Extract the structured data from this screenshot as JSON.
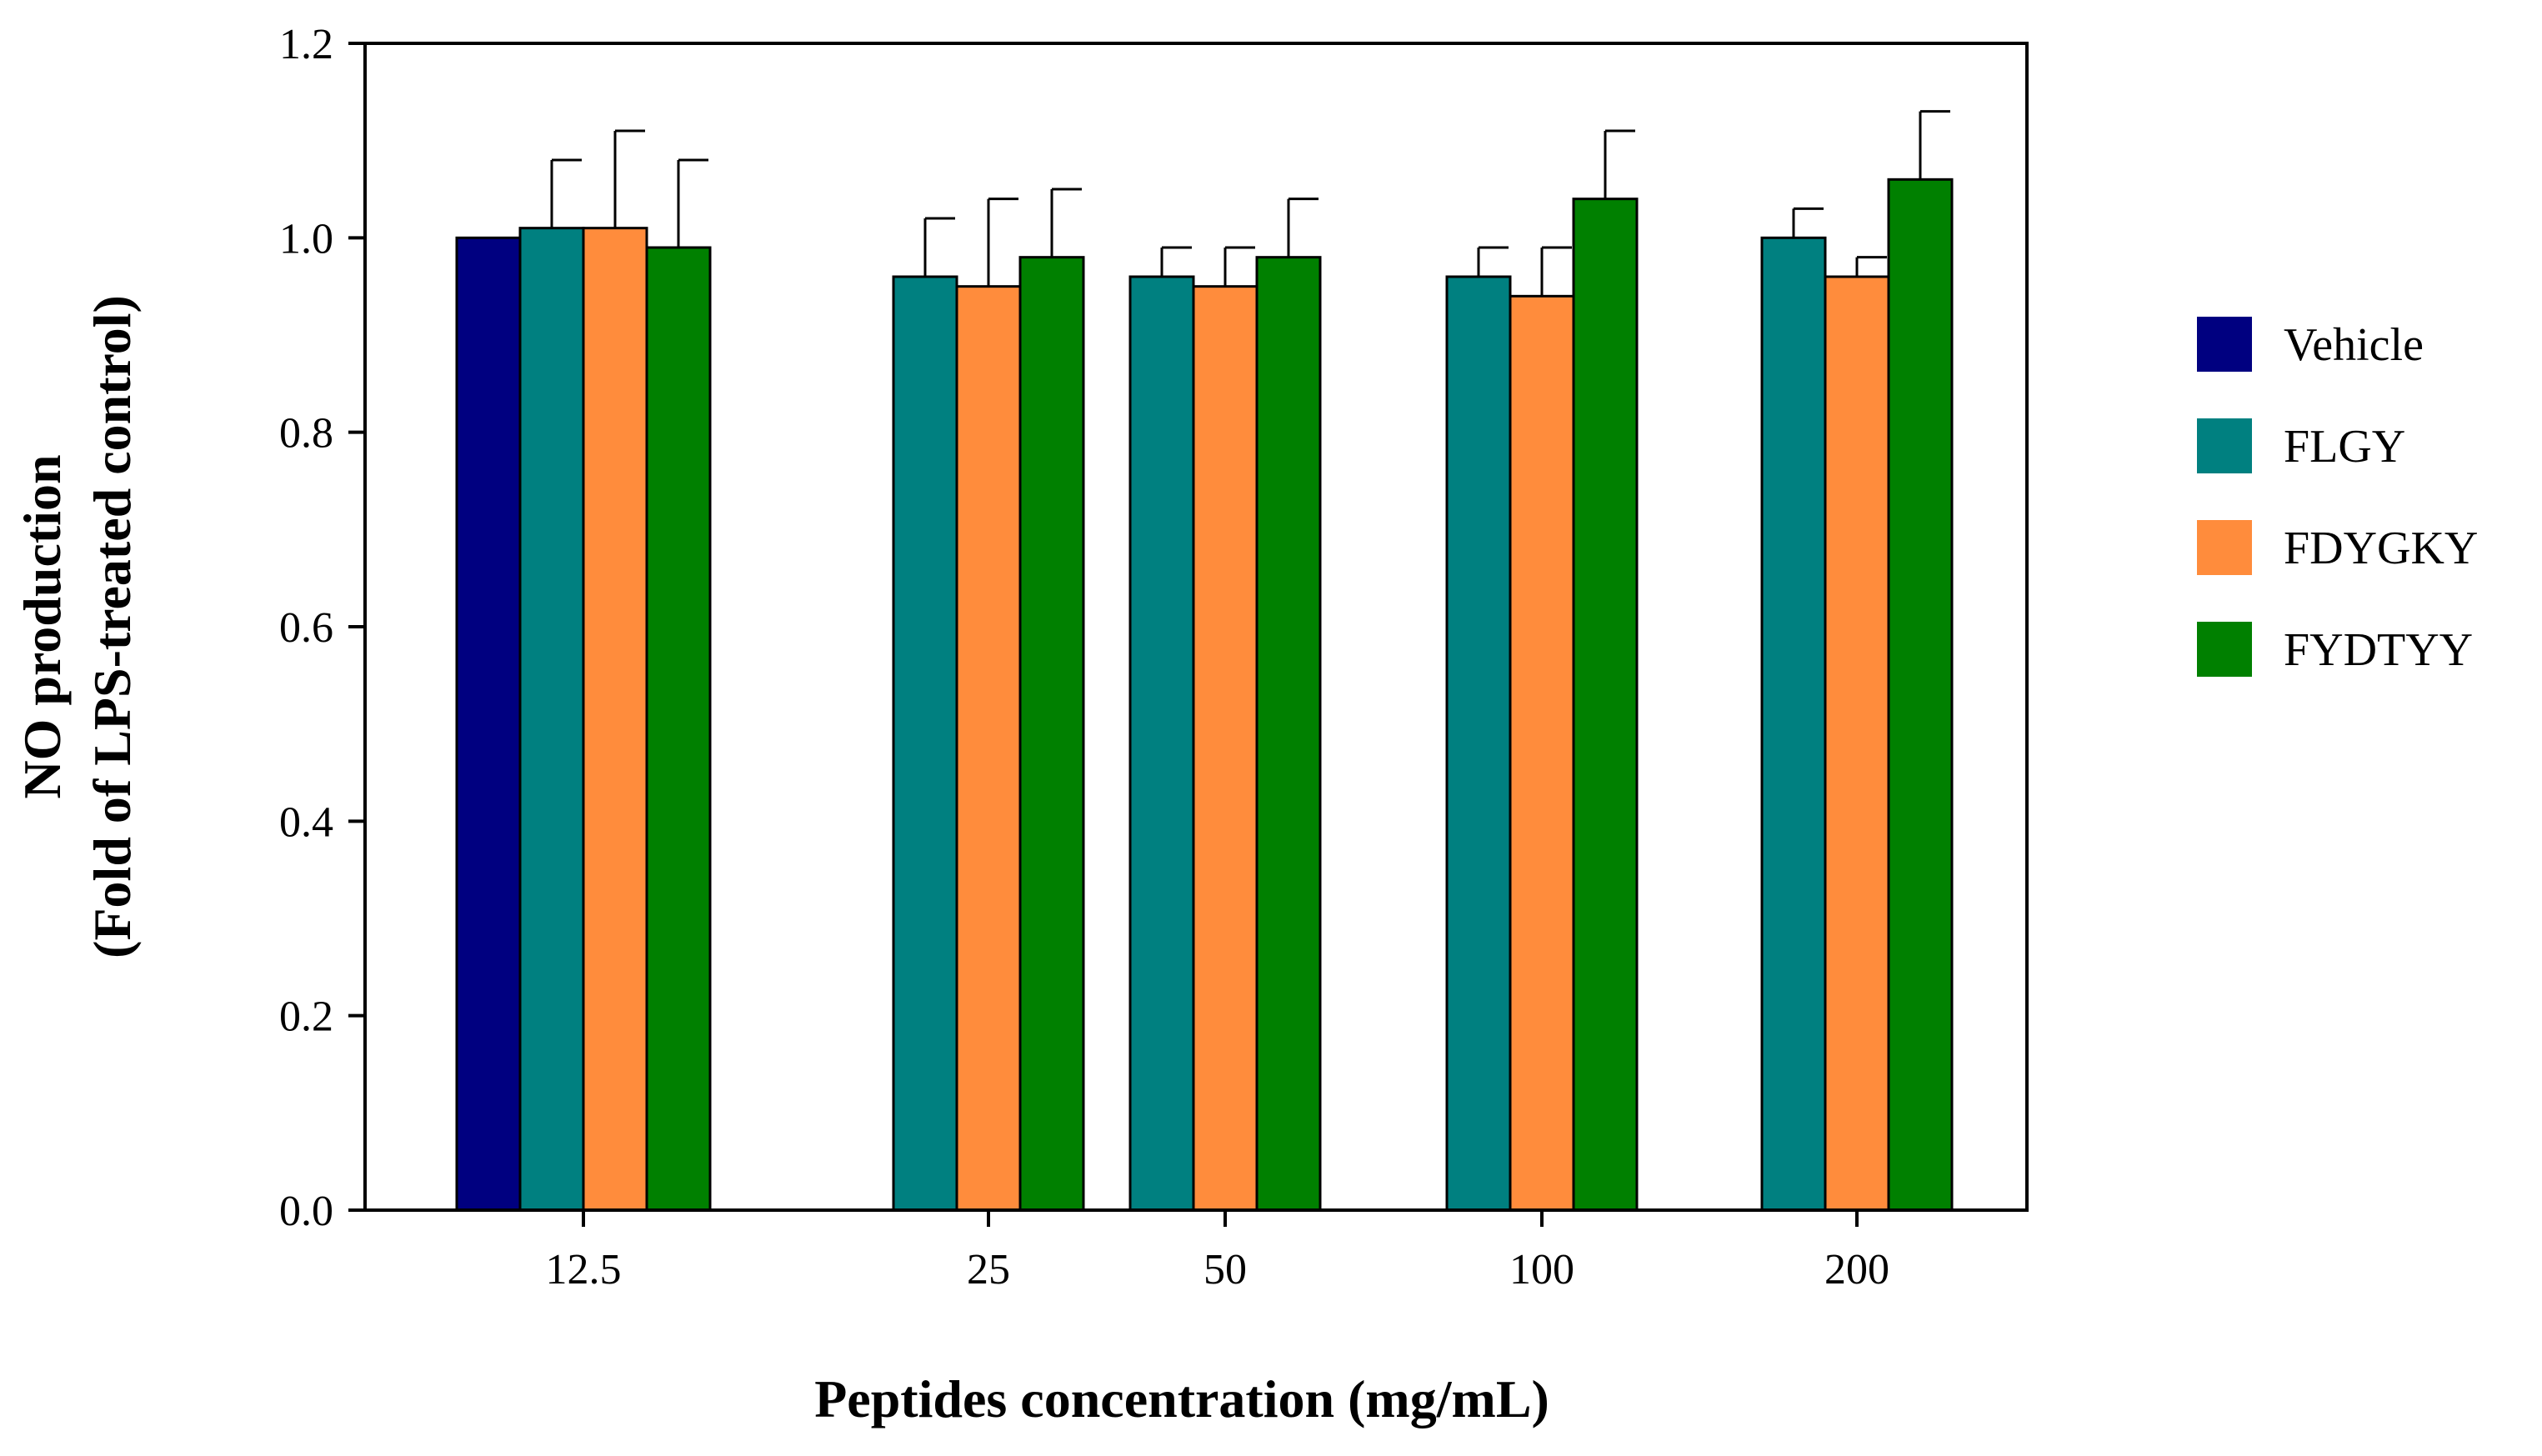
{
  "chart_data": {
    "type": "bar",
    "title": "",
    "xlabel": "Peptides concentration (mg/mL)",
    "ylabel_line1": "NO production",
    "ylabel_line2": "(Fold of LPS-treated control)",
    "ylim": [
      0,
      1.2
    ],
    "yticks": [
      "0.0",
      "0.2",
      "0.4",
      "0.6",
      "0.8",
      "1.0",
      "1.2"
    ],
    "categories": [
      "12.5",
      "25",
      "50",
      "100",
      "200"
    ],
    "legend_position": "right",
    "grid": false,
    "series": [
      {
        "name": "Vehicle",
        "color": "#000080",
        "values": [
          1.0,
          null,
          null,
          null,
          null
        ],
        "errors": [
          0,
          null,
          null,
          null,
          null
        ]
      },
      {
        "name": "FLGY",
        "color": "#008080",
        "values": [
          1.01,
          0.96,
          0.96,
          0.96,
          1.0
        ],
        "errors": [
          0.07,
          0.06,
          0.03,
          0.03,
          0.03
        ]
      },
      {
        "name": "FDYGKY",
        "color": "#FF8C3C",
        "values": [
          1.01,
          0.95,
          0.95,
          0.94,
          0.96
        ],
        "errors": [
          0.1,
          0.09,
          0.04,
          0.05,
          0.02
        ]
      },
      {
        "name": "FYDTYY",
        "color": "#008000",
        "values": [
          0.99,
          0.98,
          0.98,
          1.04,
          1.06
        ],
        "errors": [
          0.09,
          0.07,
          0.06,
          0.07,
          0.07
        ]
      }
    ]
  }
}
